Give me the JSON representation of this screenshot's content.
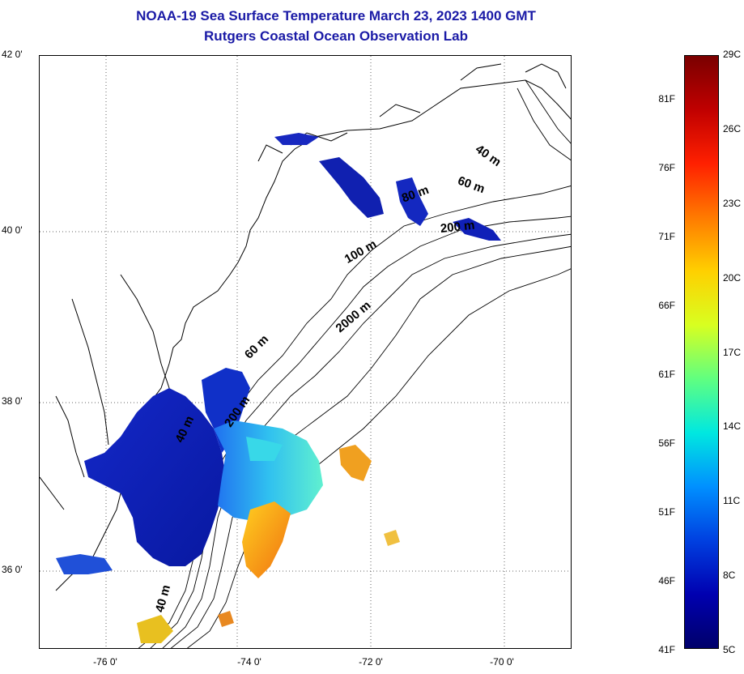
{
  "title": {
    "line1": "NOAA-19 Sea Surface Temperature March 23, 2023 1400 GMT",
    "line2": "Rutgers Coastal Ocean Observation Lab"
  },
  "latitude_ticks": [
    "42 0'",
    "40 0'",
    "38 0'",
    "36 0'"
  ],
  "longitude_ticks": [
    "-76 0'",
    "-74 0'",
    "-72 0'",
    "-70 0'"
  ],
  "bathymetry_labels": [
    "40 m",
    "60 m",
    "80 m",
    "200 m",
    "100 m",
    "2000 m",
    "60 m",
    "200 m",
    "40 m",
    "40 m"
  ],
  "colorbar": {
    "fahrenheit_labels": [
      "81F",
      "76F",
      "71F",
      "66F",
      "61F",
      "56F",
      "51F",
      "46F",
      "41F"
    ],
    "celsius_labels": [
      "29C",
      "26C",
      "23C",
      "20C",
      "17C",
      "14C",
      "11C",
      "8C",
      "5C"
    ],
    "colors": [
      "#7a0000",
      "#c00000",
      "#ff2000",
      "#ff7a00",
      "#ffd000",
      "#d8ff20",
      "#60ff80",
      "#00e8e0",
      "#0090ff",
      "#0040e0",
      "#0000b0",
      "#00006a"
    ]
  },
  "colors": {
    "title": "#1a1aa6",
    "cold_water": "#1020c0",
    "mid_water": "#40c8f0",
    "warm_water": "#f09020"
  }
}
